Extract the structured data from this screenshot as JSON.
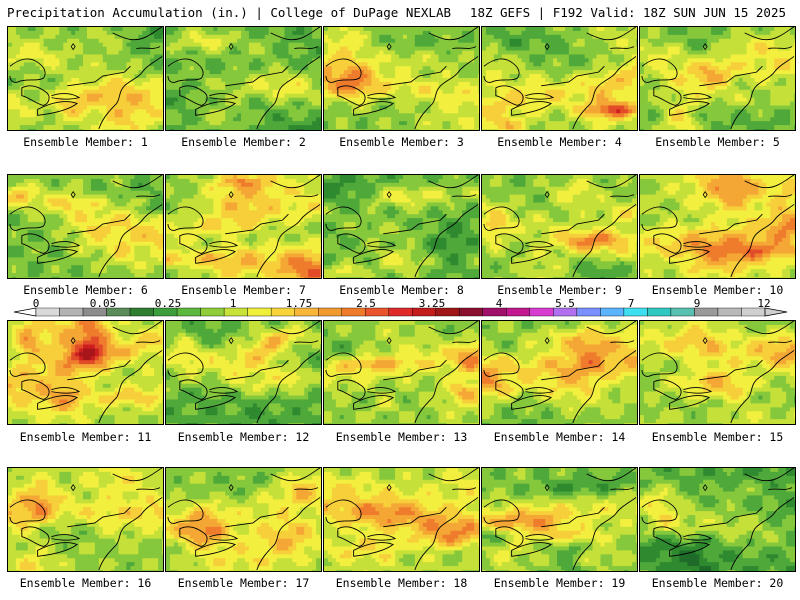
{
  "header": {
    "left": "Precipitation Accumulation (in.) | College of DuPage NEXLAB",
    "right": "18Z GEFS | F192 Valid: 18Z SUN JUN 15 2025"
  },
  "colorbar": {
    "tick_labels": [
      "0",
      "0.05",
      "0.25",
      "1",
      "1.75",
      "2.5",
      "3.25",
      "4",
      "5.5",
      "7",
      "9",
      "12"
    ],
    "colors": [
      "#d9d9d9",
      "#b3b3b3",
      "#8c8c8c",
      "#5a8c5a",
      "#2f7d2f",
      "#3d9e3d",
      "#5cb83c",
      "#8fce3a",
      "#c8e23a",
      "#f0f03a",
      "#f7d43a",
      "#f6b73a",
      "#f39a2f",
      "#ef7a2a",
      "#e9542a",
      "#df2a2a",
      "#c41c1c",
      "#a01616",
      "#8a1030",
      "#a0106a",
      "#c21890",
      "#d93cd0",
      "#b070f0",
      "#7a90ff",
      "#5ab4ff",
      "#3ee0f0",
      "#30c8c0",
      "#58c0b0",
      "#9a9a9a",
      "#b8b8b8",
      "#cfcfcf"
    ]
  },
  "panels": [
    {
      "label": "Ensemble Member: 1",
      "seed": 11,
      "wet": 0.45
    },
    {
      "label": "Ensemble Member: 2",
      "seed": 23,
      "wet": 0.25
    },
    {
      "label": "Ensemble Member: 3",
      "seed": 37,
      "wet": 0.45
    },
    {
      "label": "Ensemble Member: 4",
      "seed": 41,
      "wet": 0.55
    },
    {
      "label": "Ensemble Member: 5",
      "seed": 53,
      "wet": 0.4
    },
    {
      "label": "Ensemble Member: 6",
      "seed": 67,
      "wet": 0.4
    },
    {
      "label": "Ensemble Member: 7",
      "seed": 71,
      "wet": 0.5
    },
    {
      "label": "Ensemble Member: 8",
      "seed": 83,
      "wet": 0.3
    },
    {
      "label": "Ensemble Member: 9",
      "seed": 97,
      "wet": 0.45
    },
    {
      "label": "Ensemble Member: 10",
      "seed": 101,
      "wet": 0.6
    },
    {
      "label": "Ensemble Member: 11",
      "seed": 113,
      "wet": 0.65
    },
    {
      "label": "Ensemble Member: 12",
      "seed": 127,
      "wet": 0.25
    },
    {
      "label": "Ensemble Member: 13",
      "seed": 131,
      "wet": 0.55
    },
    {
      "label": "Ensemble Member: 14",
      "seed": 149,
      "wet": 0.55
    },
    {
      "label": "Ensemble Member: 15",
      "seed": 151,
      "wet": 0.5
    },
    {
      "label": "Ensemble Member: 16",
      "seed": 163,
      "wet": 0.55
    },
    {
      "label": "Ensemble Member: 17",
      "seed": 173,
      "wet": 0.5
    },
    {
      "label": "Ensemble Member: 18",
      "seed": 181,
      "wet": 0.6
    },
    {
      "label": "Ensemble Member: 19",
      "seed": 191,
      "wet": 0.45
    },
    {
      "label": "Ensemble Member: 20",
      "seed": 199,
      "wet": 0.2
    }
  ]
}
